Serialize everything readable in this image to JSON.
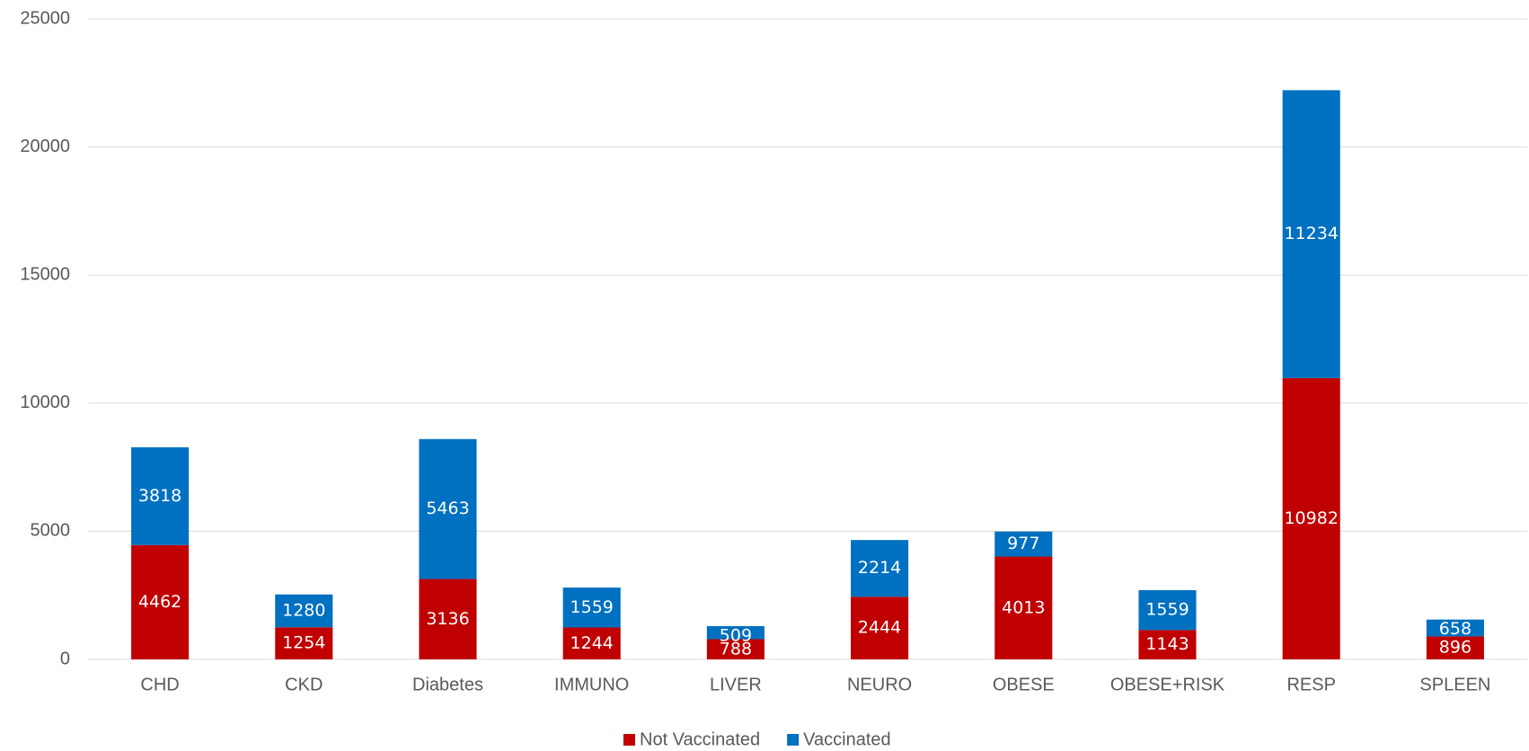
{
  "chart_data": {
    "type": "bar",
    "stacked": true,
    "categories": [
      "CHD",
      "CKD",
      "Diabetes",
      "IMMUNO",
      "LIVER",
      "NEURO",
      "OBESE",
      "OBESE+RISK",
      "RESP",
      "SPLEEN"
    ],
    "series": [
      {
        "name": "Not Vaccinated",
        "color": "#c00000",
        "values": [
          4462,
          1254,
          3136,
          1244,
          788,
          2444,
          4013,
          1143,
          10982,
          896
        ]
      },
      {
        "name": "Vaccinated",
        "color": "#0070c0",
        "values": [
          3818,
          1280,
          5463,
          1559,
          509,
          2214,
          977,
          1559,
          11234,
          658
        ]
      }
    ],
    "ylim": [
      0,
      25000
    ],
    "yticks": [
      0,
      5000,
      10000,
      15000,
      20000,
      25000
    ],
    "grid": true,
    "legend": "bottom"
  }
}
